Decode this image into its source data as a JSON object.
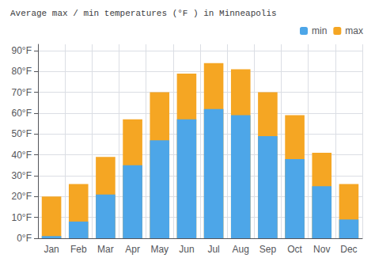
{
  "chart_data": {
    "type": "bar",
    "title": "Average max / min temperatures (°F ) in Minneapolis",
    "categories": [
      "Jan",
      "Feb",
      "Mar",
      "Apr",
      "May",
      "Jun",
      "Jul",
      "Aug",
      "Sep",
      "Oct",
      "Nov",
      "Dec"
    ],
    "series": [
      {
        "name": "min",
        "color": "#4da6e8",
        "values": [
          1,
          8,
          21,
          35,
          47,
          57,
          62,
          59,
          49,
          38,
          25,
          9
        ]
      },
      {
        "name": "max",
        "color": "#f5a623",
        "values": [
          20,
          26,
          39,
          57,
          70,
          79,
          84,
          81,
          70,
          59,
          41,
          26
        ]
      }
    ],
    "ylim": [
      0,
      93
    ],
    "yticks": [
      {
        "value": 0,
        "label": "0°F"
      },
      {
        "value": 10,
        "label": "10°F"
      },
      {
        "value": 20,
        "label": "20°F"
      },
      {
        "value": 30,
        "label": "30°F"
      },
      {
        "value": 40,
        "label": "40°F"
      },
      {
        "value": 50,
        "label": "50°F"
      },
      {
        "value": 60,
        "label": "60°F"
      },
      {
        "value": 70,
        "label": "70°F"
      },
      {
        "value": 80,
        "label": "80°F"
      },
      {
        "value": 90,
        "label": "90°F"
      }
    ],
    "grid": true,
    "legend": "top-right"
  }
}
